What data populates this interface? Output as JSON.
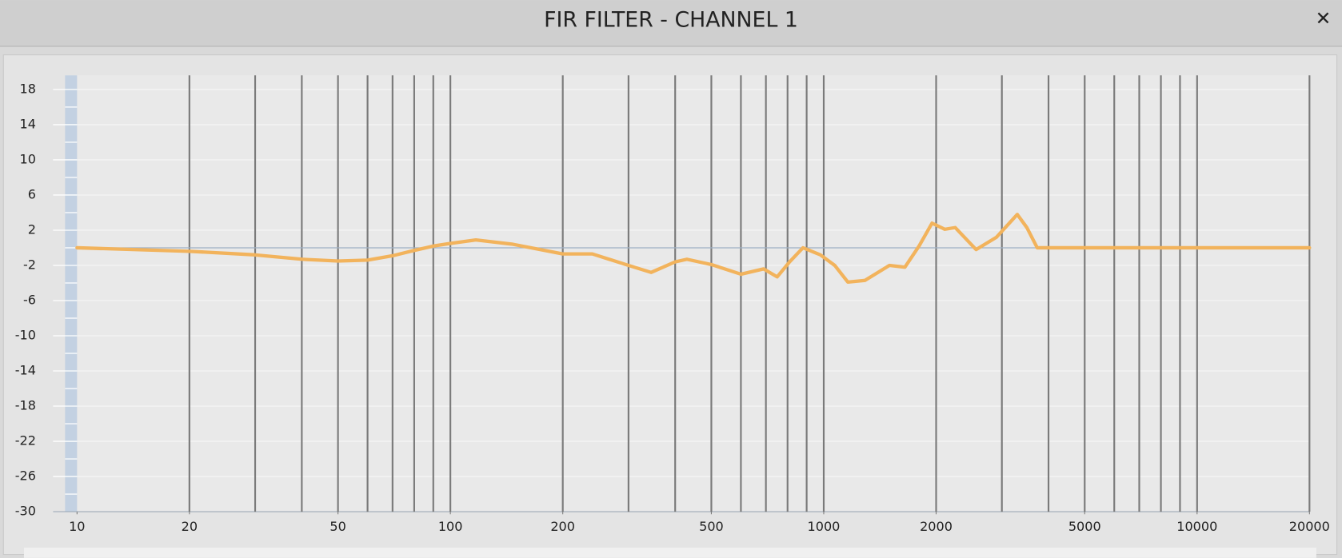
{
  "window": {
    "title": "FIR FILTER - CHANNEL 1",
    "close": "✕"
  },
  "chart_data": {
    "type": "line",
    "color": "#f2b35c",
    "xscale": "log",
    "x": [
      10,
      20,
      30,
      40,
      50,
      60,
      70,
      80,
      90,
      100,
      117,
      147,
      200,
      240,
      300,
      345,
      400,
      430,
      500,
      600,
      690,
      750,
      810,
      880,
      980,
      1070,
      1160,
      1290,
      1500,
      1650,
      1800,
      1950,
      2110,
      2250,
      2560,
      2900,
      3300,
      3500,
      3730,
      20000
    ],
    "values": [
      0,
      -0.4,
      -0.8,
      -1.3,
      -1.5,
      -1.4,
      -0.9,
      -0.3,
      0.2,
      0.5,
      0.9,
      0.4,
      -0.7,
      -0.7,
      -2.0,
      -2.8,
      -1.6,
      -1.3,
      -1.9,
      -3.0,
      -2.4,
      -3.3,
      -1.6,
      0,
      -0.8,
      -2.0,
      -3.9,
      -3.7,
      -2.0,
      -2.2,
      0.2,
      2.8,
      2.1,
      2.3,
      -0.2,
      1.2,
      3.8,
      2.3,
      0,
      0
    ],
    "xlim": [
      10,
      20000
    ],
    "xticks": [
      10,
      20,
      50,
      100,
      200,
      500,
      1000,
      2000,
      5000,
      10000,
      20000
    ],
    "xgrid": [
      20,
      30,
      40,
      50,
      60,
      70,
      80,
      90,
      100,
      200,
      300,
      400,
      500,
      600,
      700,
      800,
      900,
      1000,
      2000,
      3000,
      4000,
      5000,
      6000,
      7000,
      8000,
      9000,
      10000,
      20000
    ],
    "ylim": [
      -30,
      19.6
    ],
    "yticks": [
      18,
      14,
      10,
      6,
      2,
      -2,
      -6,
      -10,
      -14,
      -18,
      -22,
      -26,
      -30
    ],
    "hline": 0,
    "grid": true
  }
}
